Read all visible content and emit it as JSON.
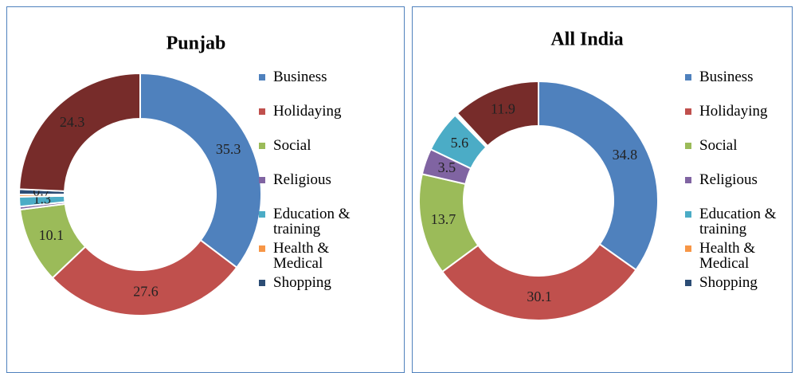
{
  "chart_data": [
    {
      "type": "donut",
      "title": "Punjab",
      "categories": [
        "Business",
        "Holidaying",
        "Social",
        "Religious",
        "Education & training",
        "Health & Medical",
        "Shopping",
        null
      ],
      "values": [
        35.3,
        27.6,
        10.1,
        0.4,
        1.3,
        0.3,
        0.7,
        24.3
      ],
      "value_labels": [
        "35.3",
        "27.6",
        "10.1",
        null,
        "1.3",
        null,
        "0.7",
        "24.3"
      ],
      "colors": [
        "#4f81bd",
        "#c0504d",
        "#9bbb59",
        "#8064a2",
        "#4bacc6",
        "#f79646",
        "#2c4d75",
        "#772c2a"
      ]
    },
    {
      "type": "donut",
      "title": "All India",
      "categories": [
        "Business",
        "Holidaying",
        "Social",
        "Religious",
        "Education & training",
        "Health & Medical",
        "Shopping",
        null
      ],
      "values": [
        34.8,
        30.1,
        13.7,
        3.5,
        5.6,
        0.2,
        0.2,
        11.9
      ],
      "value_labels": [
        "34.8",
        "30.1",
        "13.7",
        "3.5",
        "5.6",
        null,
        null,
        "11.9"
      ],
      "colors": [
        "#4f81bd",
        "#c0504d",
        "#9bbb59",
        "#8064a2",
        "#4bacc6",
        "#f79646",
        "#2c4d75",
        "#772c2a"
      ]
    }
  ]
}
